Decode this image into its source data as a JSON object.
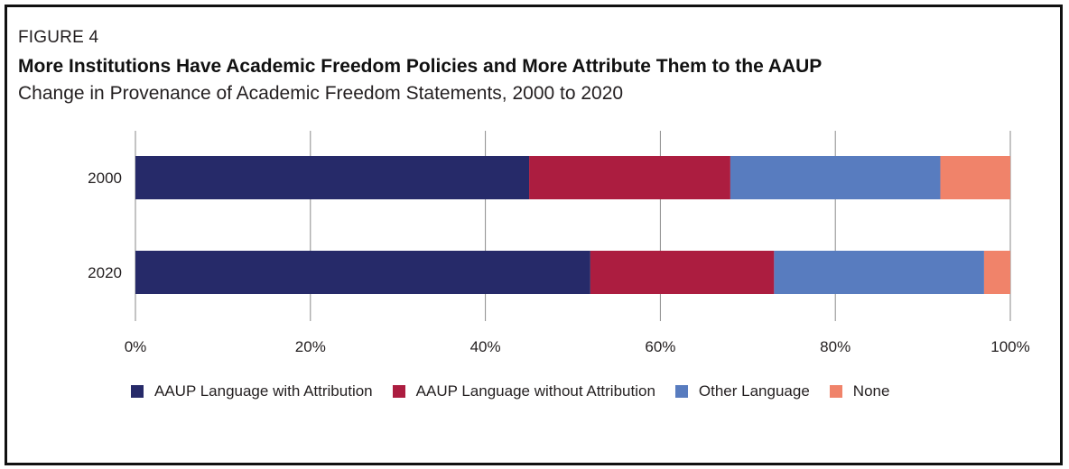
{
  "figure_label": "FIGURE 4",
  "title": "More Institutions Have Academic Freedom Policies and More Attribute Them to the AAUP",
  "subtitle": "Change in Provenance of Academic Freedom Statements, 2000 to 2020",
  "chart_data": {
    "type": "bar",
    "orientation": "horizontal",
    "stacked": true,
    "categories": [
      "2000",
      "2020"
    ],
    "series": [
      {
        "name": "AAUP Language with Attribution",
        "values": [
          45,
          52
        ],
        "color": "#262a69"
      },
      {
        "name": "AAUP Language without Attribution",
        "values": [
          23,
          21
        ],
        "color": "#ac1d40"
      },
      {
        "name": "Other Language",
        "values": [
          24,
          24
        ],
        "color": "#587cbf"
      },
      {
        "name": "None",
        "values": [
          8,
          3
        ],
        "color": "#f0836a"
      }
    ],
    "xlim": [
      0,
      100
    ],
    "x_ticks": [
      "0%",
      "20%",
      "40%",
      "60%",
      "80%",
      "100%"
    ],
    "x_tick_values": [
      0,
      20,
      40,
      60,
      80,
      100
    ],
    "grid": true,
    "legend_position": "bottom"
  }
}
